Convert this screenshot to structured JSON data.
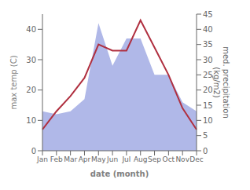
{
  "chart_data": {
    "type": "line",
    "xlabel": "date (month)",
    "ylabel": "max temp (C)",
    "y2label": "med. precipitation\n(kg/m2)",
    "categories": [
      "Jan",
      "Feb",
      "Mar",
      "Apr",
      "May",
      "Jun",
      "Jul",
      "Aug",
      "Sep",
      "Oct",
      "Nov",
      "Dec"
    ],
    "series": [
      {
        "type": "area",
        "axis": "y2",
        "color": "#b0b8e8",
        "values": [
          13,
          12,
          13,
          17,
          42,
          28,
          37,
          37,
          25,
          25,
          16,
          13
        ]
      },
      {
        "type": "line",
        "color": "#b03040",
        "values": [
          7,
          13,
          18,
          24,
          35,
          33,
          33,
          43,
          34,
          25,
          14,
          7
        ]
      }
    ],
    "ylim": [
      0,
      45
    ],
    "yticks": [
      0,
      10,
      20,
      30,
      40
    ],
    "y2lim": [
      0,
      45
    ],
    "y2ticks": [
      0,
      5,
      10,
      15,
      20,
      25,
      30,
      35,
      40,
      45
    ]
  }
}
